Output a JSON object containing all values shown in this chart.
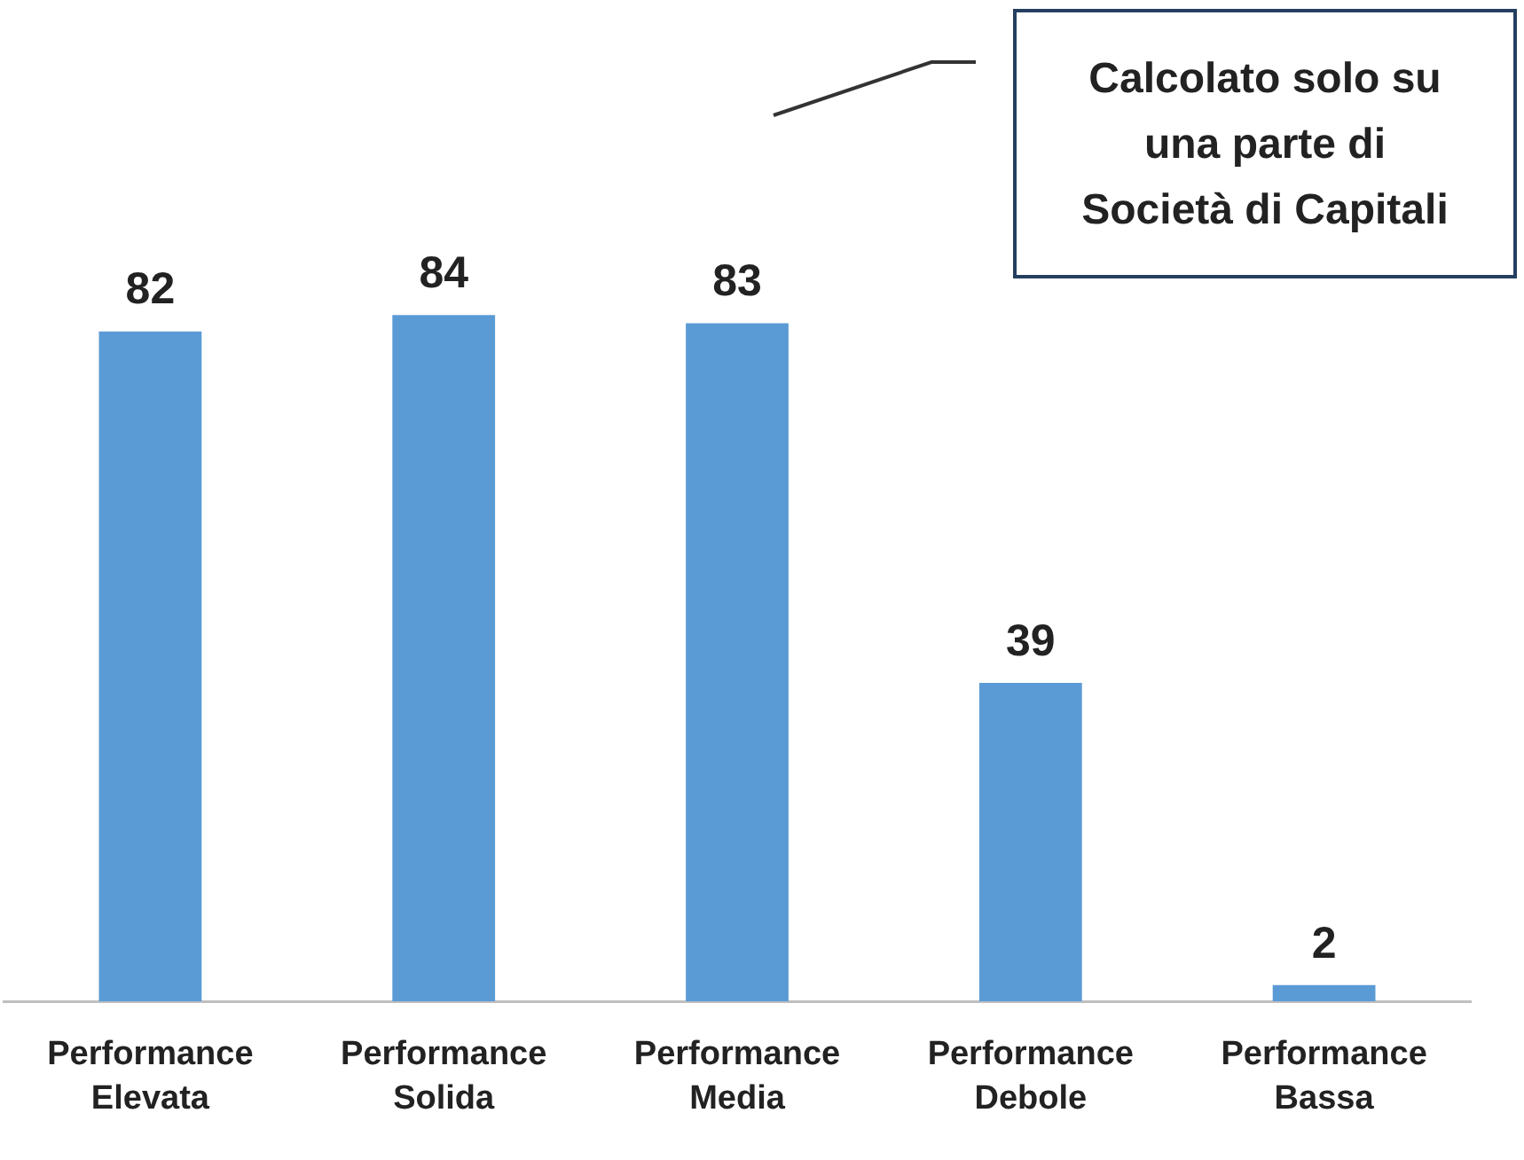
{
  "chart_data": {
    "type": "bar",
    "categories": [
      "Performance Elevata",
      "Performance Solida",
      "Performance Media",
      "Performance Debole",
      "Performance Bassa"
    ],
    "values": [
      82,
      84,
      83,
      39,
      2
    ],
    "color": "#5b9bd5",
    "data_labels": true,
    "grid": false,
    "legend": false,
    "tick_labels": "x",
    "annotations": [
      "Calcolato solo su\nuna parte di\nSocietà di Capitali"
    ]
  }
}
